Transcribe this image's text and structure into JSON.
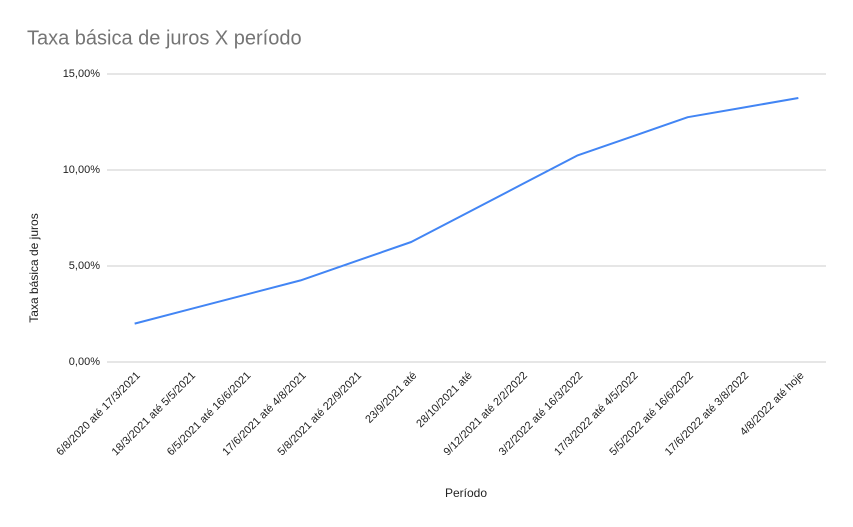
{
  "chart_data": {
    "type": "line",
    "title": "Taxa básica de juros X período",
    "x_label": "Período",
    "y_label": "Taxa básica de juros",
    "categories": [
      "6/8/2020 até 17/3/2021",
      "18/3/2021 até 5/5/2021",
      "6/5/2021 até 16/6/2021",
      "17/6/2021 até 4/8/2021",
      "5/8/2021 até 22/9/2021",
      "23/9/2021 até",
      "28/10/2021 até",
      "9/12/2021 até 2/2/2022",
      "3/2/2022 até 16/3/2022",
      "17/3/2022 até 4/5/2022",
      "5/5/2022 até 16/6/2022",
      "17/6/2022 até 3/8/2022",
      "4/8/2022 até hoje"
    ],
    "series": [
      {
        "name": "Taxa básica de juros",
        "color": "#4285f4",
        "values": [
          2,
          2.75,
          3.5,
          4.25,
          5.25,
          6.25,
          7.75,
          9.25,
          10.75,
          11.75,
          12.75,
          13.25,
          13.75
        ]
      }
    ],
    "ylim": [
      0,
      15
    ],
    "yticks": [
      {
        "value": 0,
        "label": "0,00%"
      },
      {
        "value": 5,
        "label": "5,00%"
      },
      {
        "value": 10,
        "label": "10,00%"
      },
      {
        "value": 15,
        "label": "15,00%"
      }
    ],
    "grid": true
  }
}
